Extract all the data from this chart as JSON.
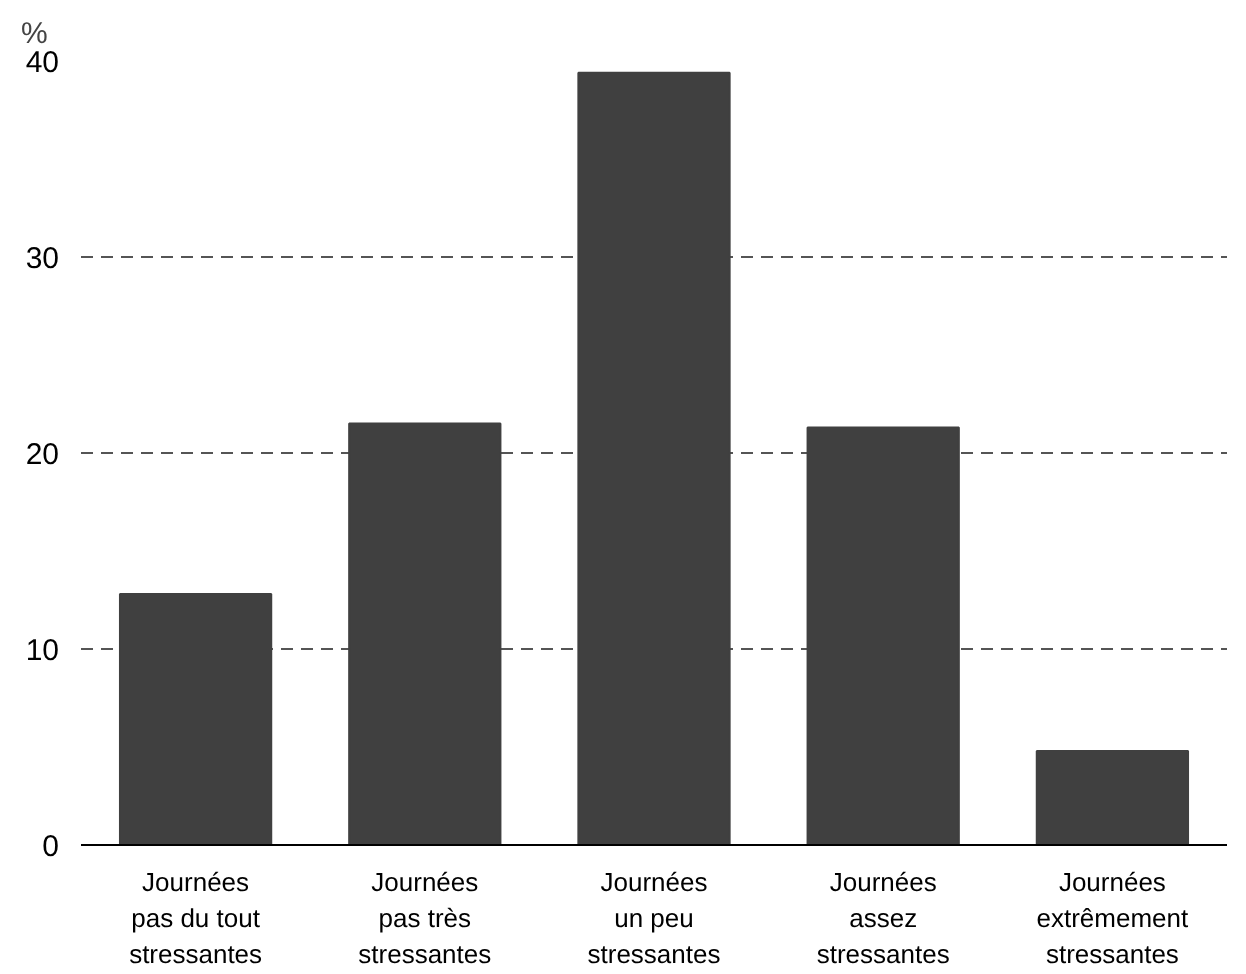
{
  "chart_data": {
    "type": "bar",
    "ylabel": "%",
    "categories": [
      "Journées\npas du tout\nstressantes",
      "Journées\npas très\nstressantes",
      "Journées\nun peu\nstressantes",
      "Journées\nassez\nstressantes",
      "Journées\nextrêmement\nstressantes"
    ],
    "values": [
      12.8,
      21.5,
      39.4,
      21.3,
      4.8
    ],
    "color": "#404040",
    "ylim": [
      0,
      40
    ],
    "yticks": [
      0,
      10,
      20,
      30,
      40
    ],
    "grid": "y",
    "line_style": "dashed"
  }
}
